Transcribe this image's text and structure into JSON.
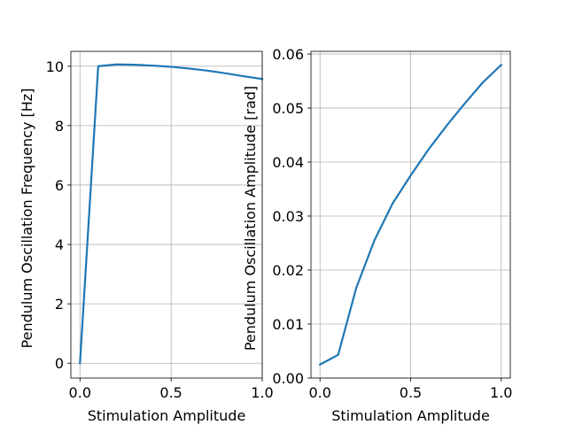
{
  "chart_data": [
    {
      "type": "line",
      "xlabel": "Stimulation Amplitude",
      "ylabel": "Pendulum Oscillation Frequency [Hz]",
      "xlim": [
        -0.05,
        1.0
      ],
      "ylim": [
        -0.5,
        10.5
      ],
      "xticks": [
        0.0,
        0.5,
        1.0
      ],
      "xtick_labels": [
        "0.0",
        "0.5",
        "1.0"
      ],
      "yticks": [
        0,
        2,
        4,
        6,
        8,
        10
      ],
      "ytick_labels": [
        "0",
        "2",
        "4",
        "6",
        "8",
        "10"
      ],
      "grid": true,
      "color": "#1f77b4",
      "series": [
        {
          "x": [
            0.0,
            0.1,
            0.2,
            0.3,
            0.4,
            0.5,
            0.6,
            0.7,
            0.8,
            0.9,
            1.0
          ],
          "y": [
            0.0,
            10.0,
            10.06,
            10.05,
            10.02,
            9.98,
            9.92,
            9.85,
            9.76,
            9.66,
            9.57
          ]
        }
      ]
    },
    {
      "type": "line",
      "xlabel": "Stimulation Amplitude",
      "ylabel": "Pendulum Oscillation Amplitude [rad]",
      "xlim": [
        -0.05,
        1.05
      ],
      "ylim": [
        0.0,
        0.0605
      ],
      "xticks": [
        0.0,
        0.5,
        1.0
      ],
      "xtick_labels": [
        "0.0",
        "0.5",
        "1.0"
      ],
      "yticks": [
        0.0,
        0.01,
        0.02,
        0.03,
        0.04,
        0.05,
        0.06
      ],
      "ytick_labels": [
        "0.00",
        "0.01",
        "0.02",
        "0.03",
        "0.04",
        "0.05",
        "0.06"
      ],
      "grid": true,
      "color": "#1f77b4",
      "series": [
        {
          "x": [
            0.0,
            0.1,
            0.2,
            0.3,
            0.4,
            0.5,
            0.6,
            0.7,
            0.8,
            0.9,
            1.0
          ],
          "y": [
            0.0025,
            0.0043,
            0.0167,
            0.0255,
            0.0323,
            0.0375,
            0.0424,
            0.0468,
            0.0509,
            0.0548,
            0.058
          ]
        }
      ]
    }
  ]
}
